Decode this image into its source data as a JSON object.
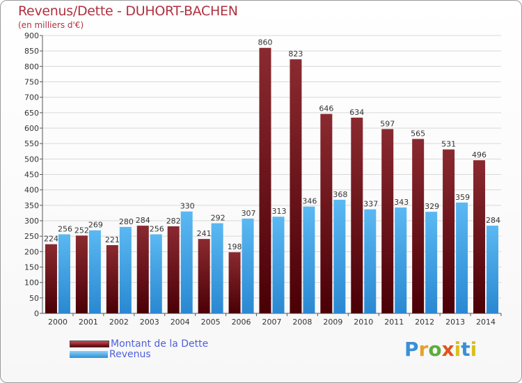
{
  "title": "Revenus/Dette - DUHORT-BACHEN",
  "subtitle": "(en milliers d'€)",
  "legend": {
    "dette": "Montant de la Dette",
    "revenus": "Revenus"
  },
  "logo_text": "Proxiti",
  "colors": {
    "dette": "#7a1018",
    "revenus": "#42a8ea",
    "title": "#b03040",
    "legend_text": "#4d5fdc"
  },
  "chart_data": {
    "type": "bar",
    "title": "Revenus/Dette - DUHORT-BACHEN",
    "subtitle": "(en milliers d'€)",
    "categories": [
      "2000",
      "2001",
      "2002",
      "2003",
      "2004",
      "2005",
      "2006",
      "2007",
      "2008",
      "2009",
      "2010",
      "2011",
      "2012",
      "2013",
      "2014"
    ],
    "series": [
      {
        "name": "Montant de la Dette",
        "values": [
          224,
          252,
          221,
          284,
          282,
          241,
          198,
          860,
          823,
          646,
          634,
          597,
          565,
          531,
          496
        ]
      },
      {
        "name": "Revenus",
        "values": [
          256,
          269,
          280,
          256,
          330,
          292,
          307,
          313,
          346,
          368,
          337,
          343,
          329,
          359,
          284
        ]
      }
    ],
    "ylim": [
      0,
      900
    ],
    "yticks": [
      0,
      50,
      100,
      150,
      200,
      250,
      300,
      350,
      400,
      450,
      500,
      550,
      600,
      650,
      700,
      750,
      800,
      850,
      900
    ],
    "grid": true,
    "legend_position": "bottom-left"
  }
}
